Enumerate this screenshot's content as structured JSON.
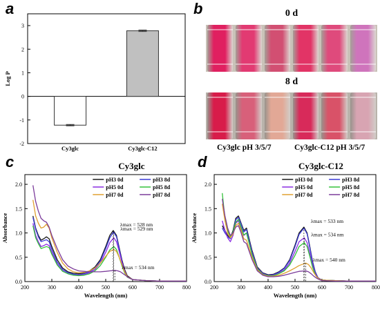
{
  "panels": {
    "a": "a",
    "b": "b",
    "c": "c",
    "d": "d"
  },
  "photo_panel": {
    "time_top": "0 d",
    "time_bottom": "8 d",
    "caption_left": "Cy3glc pH 3/5/7",
    "caption_right": "Cy3glc-C12 pH 3/5/7",
    "row_top_colors": [
      "#e02060",
      "#e23a72",
      "#d24f72",
      "#e23466",
      "#df4a7c",
      "#cf74bc"
    ],
    "row_bottom_colors": [
      "#d81c4a",
      "#d8607a",
      "#e2a896",
      "#d82a5a",
      "#d95268",
      "#d8a4b2"
    ]
  },
  "chart_data": [
    {
      "id": "a",
      "type": "bar",
      "title": "",
      "ylabel": "Log P",
      "xlabel": "",
      "categories": [
        "Cy3glc",
        "Cy3glc-C12"
      ],
      "values": [
        -1.22,
        2.78
      ],
      "errors": [
        0.03,
        0.03
      ],
      "colors": [
        "#ffffff",
        "#c0c0c0"
      ],
      "ylim": [
        -2,
        3.5
      ],
      "yticks": [
        -2,
        -1,
        0,
        1,
        2,
        3
      ],
      "grid": false
    },
    {
      "id": "c",
      "type": "line",
      "title": "Cy3glc",
      "xlabel": "Wavelength (nm)",
      "ylabel": "Absorbance",
      "xlim": [
        200,
        800
      ],
      "ylim": [
        0,
        2.2
      ],
      "xticks": [
        200,
        300,
        400,
        500,
        600,
        700,
        800
      ],
      "yticks": [
        0.0,
        0.5,
        1.0,
        1.5,
        2.0
      ],
      "legend": "top-right",
      "series": [
        {
          "name": "pH3 0d",
          "color": "#1a1a1a",
          "x": [
            230,
            240,
            250,
            260,
            270,
            280,
            290,
            300,
            320,
            340,
            360,
            380,
            400,
            420,
            440,
            460,
            480,
            500,
            515,
            528,
            540,
            550,
            560,
            570,
            580,
            600,
            650,
            700,
            800
          ],
          "y": [
            1.35,
            1.1,
            0.95,
            0.85,
            0.88,
            0.92,
            0.88,
            0.72,
            0.45,
            0.28,
            0.2,
            0.17,
            0.16,
            0.18,
            0.22,
            0.3,
            0.45,
            0.72,
            0.95,
            1.05,
            0.95,
            0.7,
            0.45,
            0.25,
            0.12,
            0.04,
            0.02,
            0.01,
            0.01
          ]
        },
        {
          "name": "pH3 8d",
          "color": "#3a3ad6",
          "x": [
            230,
            240,
            250,
            260,
            270,
            280,
            290,
            300,
            320,
            340,
            360,
            380,
            400,
            420,
            440,
            460,
            480,
            500,
            515,
            529,
            540,
            550,
            560,
            570,
            580,
            600,
            650,
            700,
            800
          ],
          "y": [
            1.32,
            1.08,
            0.92,
            0.82,
            0.84,
            0.86,
            0.82,
            0.66,
            0.4,
            0.25,
            0.18,
            0.15,
            0.14,
            0.16,
            0.2,
            0.28,
            0.42,
            0.68,
            0.9,
            1.02,
            0.92,
            0.68,
            0.42,
            0.22,
            0.1,
            0.04,
            0.02,
            0.01,
            0.01
          ]
        },
        {
          "name": "pH5 0d",
          "color": "#8a2be2",
          "x": [
            230,
            240,
            250,
            260,
            270,
            280,
            290,
            300,
            320,
            340,
            360,
            380,
            400,
            420,
            440,
            460,
            480,
            500,
            515,
            530,
            540,
            550,
            560,
            570,
            580,
            600,
            650,
            700,
            800
          ],
          "y": [
            1.2,
            0.95,
            0.82,
            0.72,
            0.74,
            0.77,
            0.74,
            0.6,
            0.36,
            0.22,
            0.16,
            0.13,
            0.13,
            0.14,
            0.18,
            0.25,
            0.38,
            0.6,
            0.8,
            0.9,
            0.82,
            0.62,
            0.4,
            0.22,
            0.1,
            0.04,
            0.02,
            0.01,
            0.01
          ]
        },
        {
          "name": "pH5 8d",
          "color": "#33c23a",
          "x": [
            230,
            240,
            250,
            260,
            270,
            280,
            290,
            300,
            320,
            340,
            360,
            380,
            400,
            420,
            440,
            460,
            480,
            500,
            515,
            530,
            540,
            550,
            560,
            570,
            580,
            600,
            650,
            700,
            800
          ],
          "y": [
            1.15,
            0.9,
            0.78,
            0.68,
            0.7,
            0.72,
            0.7,
            0.56,
            0.34,
            0.21,
            0.16,
            0.13,
            0.12,
            0.13,
            0.16,
            0.22,
            0.33,
            0.5,
            0.65,
            0.72,
            0.66,
            0.5,
            0.33,
            0.18,
            0.09,
            0.04,
            0.02,
            0.01,
            0.01
          ]
        },
        {
          "name": "pH7 0d",
          "color": "#e0a030",
          "x": [
            230,
            240,
            250,
            260,
            270,
            280,
            290,
            300,
            320,
            340,
            360,
            380,
            400,
            420,
            440,
            460,
            480,
            500,
            515,
            530,
            540,
            550,
            560,
            570,
            580,
            600,
            650,
            700,
            800
          ],
          "y": [
            1.68,
            1.35,
            1.2,
            1.1,
            1.12,
            1.18,
            1.1,
            0.9,
            0.6,
            0.38,
            0.26,
            0.2,
            0.18,
            0.19,
            0.22,
            0.28,
            0.38,
            0.52,
            0.62,
            0.66,
            0.62,
            0.5,
            0.35,
            0.2,
            0.1,
            0.04,
            0.02,
            0.01,
            0.01
          ]
        },
        {
          "name": "pH7 8d",
          "color": "#7b3b9a",
          "x": [
            230,
            240,
            250,
            260,
            270,
            280,
            290,
            300,
            320,
            340,
            360,
            380,
            400,
            420,
            440,
            460,
            480,
            500,
            515,
            534,
            545,
            555,
            565,
            575,
            585,
            600,
            650,
            700,
            800
          ],
          "y": [
            1.98,
            1.65,
            1.45,
            1.3,
            1.25,
            1.22,
            1.12,
            0.95,
            0.68,
            0.45,
            0.32,
            0.26,
            0.22,
            0.21,
            0.2,
            0.2,
            0.2,
            0.21,
            0.22,
            0.23,
            0.22,
            0.2,
            0.16,
            0.12,
            0.08,
            0.04,
            0.02,
            0.01,
            0.01
          ]
        }
      ],
      "annotations": [
        {
          "text": "λmax = 528 nm",
          "x": 528,
          "y": 1.05
        },
        {
          "text": "λmax = 529 nm",
          "x": 529,
          "y": 1.02
        },
        {
          "text": "λmax = 534 nm",
          "x": 534,
          "y": 0.23
        }
      ]
    },
    {
      "id": "d",
      "type": "line",
      "title": "Cy3glc-C12",
      "xlabel": "Wavelength (nm)",
      "ylabel": "Absorbance",
      "xlim": [
        200,
        800
      ],
      "ylim": [
        0,
        2.2
      ],
      "xticks": [
        200,
        300,
        400,
        500,
        600,
        700,
        800
      ],
      "yticks": [
        0.0,
        0.5,
        1.0,
        1.5,
        2.0
      ],
      "legend": "top-right",
      "series": [
        {
          "name": "pH3 0d",
          "color": "#1a1a1a",
          "x": [
            230,
            240,
            250,
            260,
            270,
            280,
            290,
            300,
            310,
            320,
            340,
            360,
            380,
            400,
            420,
            440,
            460,
            480,
            500,
            515,
            533,
            545,
            555,
            565,
            575,
            585,
            600,
            650,
            700,
            800
          ],
          "y": [
            1.15,
            1.05,
            0.95,
            0.9,
            1.05,
            1.3,
            1.35,
            1.2,
            1.05,
            1.1,
            0.65,
            0.3,
            0.18,
            0.14,
            0.15,
            0.2,
            0.28,
            0.45,
            0.75,
            1.0,
            1.12,
            1.0,
            0.72,
            0.42,
            0.2,
            0.08,
            0.03,
            0.02,
            0.01,
            0.01
          ]
        },
        {
          "name": "pH3 8d",
          "color": "#3a3ad6",
          "x": [
            230,
            240,
            250,
            260,
            270,
            280,
            290,
            300,
            310,
            320,
            340,
            360,
            380,
            400,
            420,
            440,
            460,
            480,
            500,
            515,
            533,
            545,
            555,
            565,
            575,
            585,
            600,
            650,
            700,
            800
          ],
          "y": [
            1.1,
            1.0,
            0.92,
            0.88,
            1.02,
            1.27,
            1.32,
            1.18,
            1.02,
            1.07,
            0.62,
            0.28,
            0.17,
            0.13,
            0.14,
            0.19,
            0.27,
            0.43,
            0.72,
            0.97,
            1.1,
            0.98,
            0.7,
            0.4,
            0.19,
            0.08,
            0.03,
            0.02,
            0.01,
            0.01
          ]
        },
        {
          "name": "pH5 0d",
          "color": "#8a2be2",
          "x": [
            230,
            240,
            250,
            260,
            270,
            280,
            290,
            300,
            310,
            320,
            340,
            360,
            380,
            400,
            420,
            440,
            460,
            480,
            500,
            515,
            534,
            545,
            555,
            565,
            575,
            585,
            600,
            650,
            700,
            800
          ],
          "y": [
            1.25,
            1.05,
            0.9,
            0.82,
            0.95,
            1.2,
            1.25,
            1.1,
            0.95,
            1.0,
            0.58,
            0.27,
            0.16,
            0.12,
            0.13,
            0.17,
            0.24,
            0.38,
            0.62,
            0.82,
            0.9,
            0.8,
            0.58,
            0.34,
            0.16,
            0.07,
            0.03,
            0.02,
            0.01,
            0.01
          ]
        },
        {
          "name": "pH5 8d",
          "color": "#33c23a",
          "x": [
            230,
            240,
            250,
            260,
            270,
            280,
            290,
            300,
            310,
            320,
            340,
            360,
            380,
            400,
            420,
            440,
            460,
            480,
            500,
            515,
            534,
            545,
            555,
            565,
            575,
            585,
            600,
            650,
            700,
            800
          ],
          "y": [
            1.82,
            1.3,
            1.05,
            0.92,
            1.02,
            1.22,
            1.28,
            1.12,
            0.96,
            1.0,
            0.56,
            0.26,
            0.15,
            0.12,
            0.12,
            0.16,
            0.22,
            0.34,
            0.54,
            0.72,
            0.8,
            0.72,
            0.52,
            0.3,
            0.14,
            0.06,
            0.03,
            0.02,
            0.01,
            0.01
          ]
        },
        {
          "name": "pH7 0d",
          "color": "#e0a030",
          "x": [
            230,
            240,
            250,
            260,
            270,
            280,
            290,
            300,
            310,
            320,
            340,
            360,
            380,
            400,
            420,
            440,
            460,
            480,
            500,
            515,
            540,
            550,
            560,
            570,
            580,
            590,
            600,
            650,
            700,
            800
          ],
          "y": [
            1.6,
            1.25,
            1.0,
            0.9,
            0.98,
            1.15,
            1.2,
            1.05,
            0.88,
            0.85,
            0.5,
            0.24,
            0.14,
            0.11,
            0.11,
            0.13,
            0.17,
            0.22,
            0.28,
            0.33,
            0.38,
            0.35,
            0.28,
            0.18,
            0.1,
            0.05,
            0.03,
            0.02,
            0.01,
            0.01
          ]
        },
        {
          "name": "pH7 8d",
          "color": "#7b3b9a",
          "x": [
            230,
            240,
            250,
            260,
            270,
            280,
            290,
            300,
            310,
            320,
            340,
            360,
            380,
            400,
            420,
            440,
            460,
            480,
            500,
            515,
            540,
            550,
            560,
            570,
            580,
            590,
            600,
            650,
            700,
            800
          ],
          "y": [
            1.7,
            1.35,
            1.1,
            0.95,
            1.0,
            1.12,
            1.15,
            1.0,
            0.82,
            0.78,
            0.46,
            0.22,
            0.13,
            0.1,
            0.1,
            0.11,
            0.13,
            0.16,
            0.19,
            0.21,
            0.22,
            0.2,
            0.16,
            0.11,
            0.07,
            0.04,
            0.02,
            0.01,
            0.01,
            0.01
          ]
        }
      ],
      "annotations": [
        {
          "text": "λmax = 533 nm",
          "x": 533,
          "y": 1.12
        },
        {
          "text": "λmax = 534 nm",
          "x": 534,
          "y": 0.9
        },
        {
          "text": "λmax = 540 nm",
          "x": 540,
          "y": 0.38
        }
      ]
    }
  ]
}
